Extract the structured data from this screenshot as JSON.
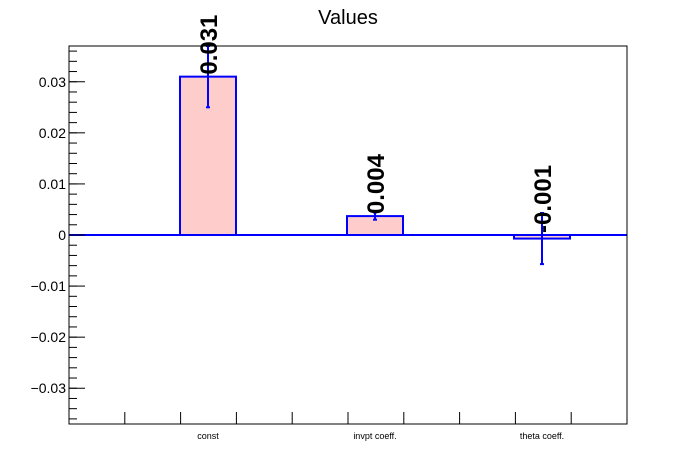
{
  "chart_data": {
    "type": "bar",
    "title": "Values",
    "categories": [
      "const",
      "invpt coeff.",
      "theta coeff."
    ],
    "values": [
      0.031,
      0.0037,
      -0.0007
    ],
    "errors": [
      0.006,
      0.0007,
      0.005
    ],
    "data_labels": [
      "0.031",
      "0.004",
      "-0.001"
    ],
    "ylim": [
      -0.037,
      0.037
    ],
    "yticks": [
      -0.03,
      -0.02,
      -0.01,
      0,
      0.01,
      0.02,
      0.03
    ],
    "ytick_labels": [
      "−0.03",
      "−0.02",
      "−0.01",
      "0",
      "0.01",
      "0.02",
      "0.03"
    ],
    "xlabel": "",
    "ylabel": "",
    "grid": false,
    "bar_fill": "#ffcccc",
    "bar_edge": "#0000ff"
  }
}
